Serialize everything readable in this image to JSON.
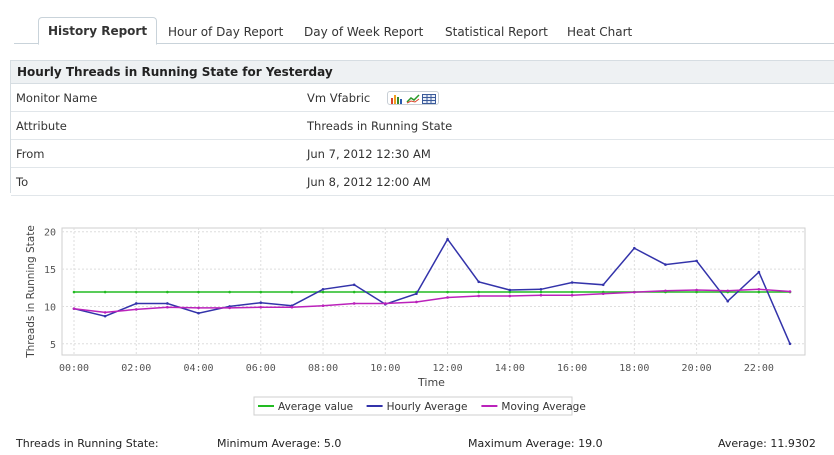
{
  "tabs": [
    {
      "label": "History Report",
      "active": true
    },
    {
      "label": "Hour of Day Report",
      "active": false
    },
    {
      "label": "Day of Week Report",
      "active": false
    },
    {
      "label": "Statistical Report",
      "active": false
    },
    {
      "label": "Heat Chart",
      "active": false
    }
  ],
  "report": {
    "title": "Hourly Threads in Running State for Yesterday",
    "rows": [
      {
        "label": "Monitor Name",
        "value": "Vm Vfabric"
      },
      {
        "label": "Attribute",
        "value": "Threads in Running State"
      },
      {
        "label": "From",
        "value": "Jun 7, 2012 12:30 AM"
      },
      {
        "label": "To",
        "value": "Jun 8, 2012 12:00 AM"
      }
    ],
    "monitor_icons": [
      "bar-chart-icon",
      "line-chart-icon",
      "table-icon"
    ]
  },
  "chart_data": {
    "type": "line",
    "xlabel": "Time",
    "ylabel": "Threads in Running State",
    "x": [
      "00:00",
      "01:00",
      "02:00",
      "03:00",
      "04:00",
      "05:00",
      "06:00",
      "07:00",
      "08:00",
      "09:00",
      "10:00",
      "11:00",
      "12:00",
      "13:00",
      "14:00",
      "15:00",
      "16:00",
      "17:00",
      "18:00",
      "19:00",
      "20:00",
      "21:00",
      "22:00",
      "23:00"
    ],
    "xticks": [
      "00:00",
      "02:00",
      "04:00",
      "06:00",
      "08:00",
      "10:00",
      "12:00",
      "14:00",
      "16:00",
      "18:00",
      "20:00",
      "22:00"
    ],
    "yticks": [
      5,
      10,
      15,
      20
    ],
    "ylim": [
      3.5,
      20.5
    ],
    "grid": true,
    "legend_placement": "bottom-center",
    "series": [
      {
        "name": "Average value",
        "color": "#22bb22",
        "values": [
          11.93,
          11.93,
          11.93,
          11.93,
          11.93,
          11.93,
          11.93,
          11.93,
          11.93,
          11.93,
          11.93,
          11.93,
          11.93,
          11.93,
          11.93,
          11.93,
          11.93,
          11.93,
          11.93,
          11.93,
          11.93,
          11.93,
          11.93,
          11.93
        ]
      },
      {
        "name": "Hourly Average",
        "color": "#3333aa",
        "values": [
          9.7,
          8.7,
          10.4,
          10.4,
          9.1,
          10.0,
          10.5,
          10.1,
          12.3,
          12.9,
          10.3,
          11.7,
          19.0,
          13.3,
          12.2,
          12.3,
          13.2,
          12.9,
          17.8,
          15.6,
          16.1,
          10.7,
          14.6,
          5.0
        ]
      },
      {
        "name": "Moving Average",
        "color": "#bb22bb",
        "values": [
          9.7,
          9.2,
          9.6,
          9.9,
          9.8,
          9.8,
          9.9,
          9.9,
          10.1,
          10.4,
          10.4,
          10.6,
          11.2,
          11.4,
          11.4,
          11.5,
          11.5,
          11.7,
          11.9,
          12.1,
          12.2,
          12.1,
          12.3,
          12.0
        ]
      }
    ]
  },
  "summary": {
    "label": "Threads in Running State:",
    "min_label": "Minimum Average:",
    "min_value": "5.0",
    "max_label": "Maximum Average:",
    "max_value": "19.0",
    "avg_label": "Average:",
    "avg_value": "11.9302"
  }
}
